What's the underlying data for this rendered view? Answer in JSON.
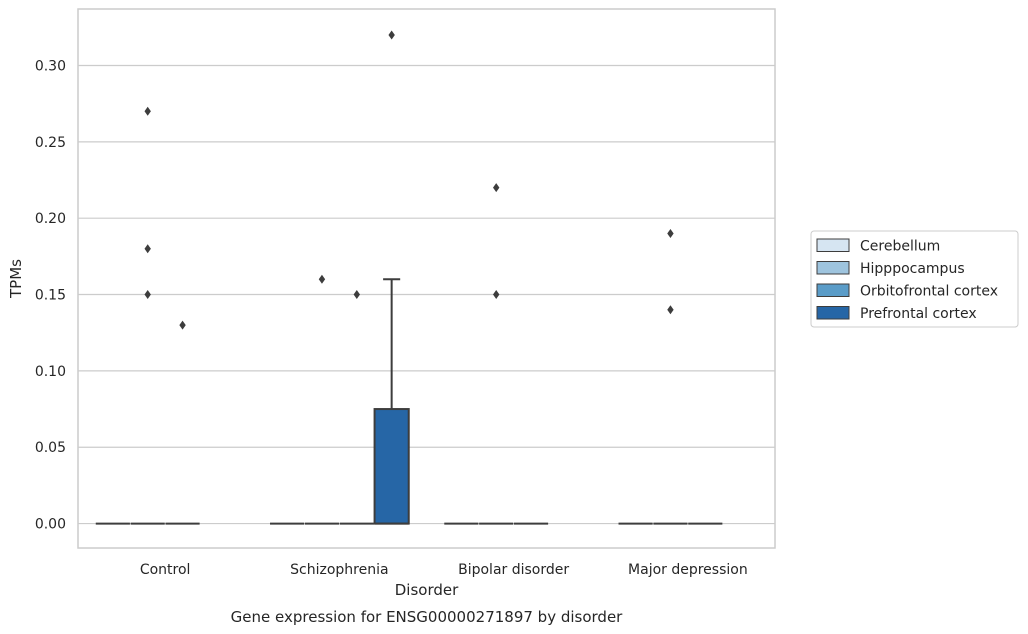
{
  "chart_data": {
    "type": "box",
    "caption": "Gene expression for ENSG00000271897 by disorder",
    "xlabel": "Disorder",
    "ylabel": "TPMs",
    "ylim": [
      -0.016,
      0.337
    ],
    "yticks": [
      "0.00",
      "0.05",
      "0.10",
      "0.15",
      "0.20",
      "0.25",
      "0.30"
    ],
    "ytick_values": [
      0.0,
      0.05,
      0.1,
      0.15,
      0.2,
      0.25,
      0.3
    ],
    "grid": true,
    "legend_position": "right",
    "categories": [
      "Control",
      "Schizophrenia",
      "Bipolar disorder",
      "Major depression"
    ],
    "series": [
      {
        "name": "Cerebellum",
        "color": "#d6e5f2",
        "boxes": [
          {
            "q1": 0,
            "median": 0,
            "q3": 0,
            "whisker_low": 0,
            "whisker_high": 0,
            "outliers": []
          },
          {
            "q1": 0,
            "median": 0,
            "q3": 0,
            "whisker_low": 0,
            "whisker_high": 0,
            "outliers": []
          },
          {
            "q1": 0,
            "median": 0,
            "q3": 0,
            "whisker_low": 0,
            "whisker_high": 0,
            "outliers": []
          },
          {
            "q1": 0,
            "median": 0,
            "q3": 0,
            "whisker_low": 0,
            "whisker_high": 0,
            "outliers": []
          }
        ]
      },
      {
        "name": "Hipppocampus",
        "color": "#9ec4de",
        "boxes": [
          {
            "q1": 0,
            "median": 0,
            "q3": 0,
            "whisker_low": 0,
            "whisker_high": 0,
            "outliers": [
              0.27,
              0.18,
              0.15
            ]
          },
          {
            "q1": 0,
            "median": 0,
            "q3": 0,
            "whisker_low": 0,
            "whisker_high": 0,
            "outliers": [
              0.16
            ]
          },
          {
            "q1": 0,
            "median": 0,
            "q3": 0,
            "whisker_low": 0,
            "whisker_high": 0,
            "outliers": [
              0.22,
              0.15
            ]
          },
          {
            "q1": 0,
            "median": 0,
            "q3": 0,
            "whisker_low": 0,
            "whisker_high": 0,
            "outliers": [
              0.19,
              0.14
            ]
          }
        ]
      },
      {
        "name": "Orbitofrontal cortex",
        "color": "#5a9cc8",
        "boxes": [
          {
            "q1": 0,
            "median": 0,
            "q3": 0,
            "whisker_low": 0,
            "whisker_high": 0,
            "outliers": [
              0.13
            ]
          },
          {
            "q1": 0,
            "median": 0,
            "q3": 0,
            "whisker_low": 0,
            "whisker_high": 0,
            "outliers": [
              0.15
            ]
          },
          {
            "q1": 0,
            "median": 0,
            "q3": 0,
            "whisker_low": 0,
            "whisker_high": 0,
            "outliers": []
          },
          {
            "q1": 0,
            "median": 0,
            "q3": 0,
            "whisker_low": 0,
            "whisker_high": 0,
            "outliers": []
          }
        ]
      },
      {
        "name": "Prefrontal cortex",
        "color": "#2666a6",
        "boxes": [
          null,
          {
            "q1": 0,
            "median": 0,
            "q3": 0.075,
            "whisker_low": 0,
            "whisker_high": 0.16,
            "outliers": [
              0.32
            ]
          },
          null,
          null
        ]
      }
    ]
  }
}
